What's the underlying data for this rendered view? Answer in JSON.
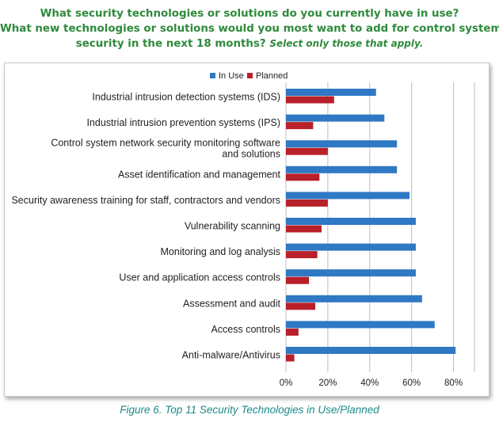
{
  "header": {
    "line1": "What security technologies or solutions do you currently have in use?",
    "line2": "What new technologies or solutions would you most want to add for control system",
    "line3": "security in the next 18 months?",
    "hint": "Select only those that apply."
  },
  "caption": "Figure 6. Top 11 Security Technologies in Use/Planned",
  "colors": {
    "in_use": "#2f78c4",
    "planned": "#b8202a",
    "grid": "#bdbdbd",
    "title": "#2f8a3c",
    "caption": "#1c8a8a"
  },
  "chart_data": {
    "type": "bar",
    "orientation": "horizontal",
    "categories": [
      [
        "Industrial intrusion detection systems (IDS)"
      ],
      [
        "Industrial intrusion prevention systems (IPS)"
      ],
      [
        "Control system network security monitoring software",
        "and solutions"
      ],
      [
        "Asset identification and management"
      ],
      [
        "Security awareness training for staff, contractors and vendors"
      ],
      [
        "Vulnerability scanning"
      ],
      [
        "Monitoring and log analysis"
      ],
      [
        "User and application access controls"
      ],
      [
        "Assessment and audit"
      ],
      [
        "Access controls"
      ],
      [
        "Anti-malware/Antivirus"
      ]
    ],
    "series": [
      {
        "name": "In Use",
        "values": [
          43,
          47,
          53,
          53,
          59,
          62,
          62,
          62,
          65,
          71,
          81
        ]
      },
      {
        "name": "Planned",
        "values": [
          23,
          13,
          20,
          16,
          20,
          17,
          15,
          11,
          14,
          6,
          4
        ]
      }
    ],
    "xlim": [
      0,
      90
    ],
    "xticks": [
      0,
      20,
      40,
      60,
      80
    ],
    "tick_suffix": "%",
    "grid": "vertical",
    "legend_position": "top"
  }
}
